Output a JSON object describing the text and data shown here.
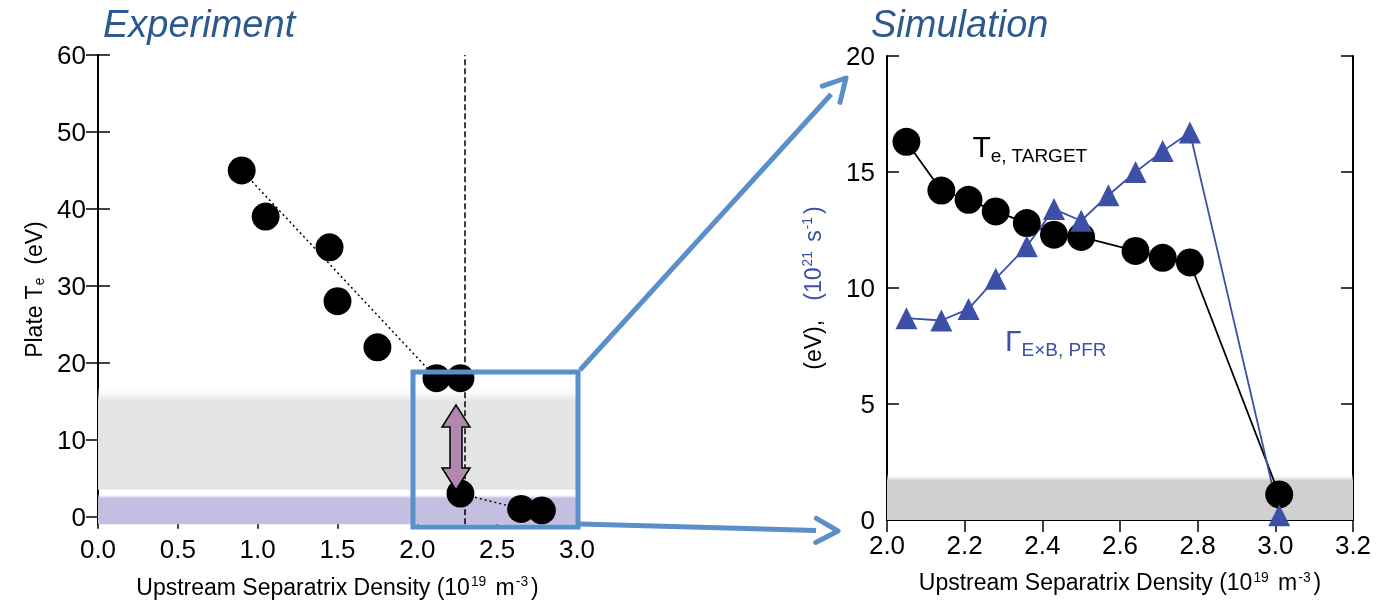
{
  "chart_data": [
    {
      "type": "scatter",
      "title": "Experiment",
      "xlabel": "Upstream Separatrix Density (10$^{19}$ m$^{-3}$)",
      "ylabel": "Plate T$_{e}$  (eV)",
      "xlim": [
        0,
        3
      ],
      "xticks": [
        {
          "value": 0,
          "label": "0.0"
        },
        {
          "value": 0.5,
          "label": "0.5"
        },
        {
          "value": 1,
          "label": "1.0"
        },
        {
          "value": 1.5,
          "label": "1.5"
        },
        {
          "value": 2,
          "label": "2.0"
        },
        {
          "value": 2.5,
          "label": "2.5"
        },
        {
          "value": 3,
          "label": "3.0"
        }
      ],
      "ylim": [
        -1,
        60
      ],
      "yticks": [
        0,
        10,
        20,
        30,
        40,
        50,
        60
      ],
      "grid": false,
      "legend": false,
      "series": [
        {
          "color": "#000000",
          "marker": "circle",
          "x": [
            0.9,
            1.05,
            1.45,
            1.5,
            1.75,
            2.12,
            2.27,
            2.27,
            2.65,
            2.78
          ],
          "values": [
            45,
            39,
            35,
            28,
            22,
            18,
            18,
            3,
            1,
            0.8
          ]
        },
        {
          "type": "line",
          "color": "#000000",
          "marker": "none",
          "line_style": "dotted",
          "x": [
            0.9,
            2.12
          ],
          "values": [
            45,
            18
          ]
        },
        {
          "type": "line",
          "color": "#000000",
          "marker": "none",
          "line_style": "dotted",
          "x": [
            2.27,
            2.65
          ],
          "values": [
            3,
            1
          ]
        }
      ],
      "ref_lines": [
        {
          "axis": "x",
          "value": 2.3,
          "color": "#000000",
          "line_style": "dashed"
        }
      ],
      "bands": [
        {
          "axis": "y",
          "from": 3.5,
          "to": 17,
          "color": "#e4e4e4"
        },
        {
          "axis": "y",
          "from": -1,
          "to": 3,
          "color": "#c3bfe0"
        }
      ]
    },
    {
      "type": "line",
      "title": "Simulation",
      "xlabel": "Upstream Separatrix Density (10$^{19}$ m$^{-3}$)",
      "ylabel": "(eV),   (10$^{21}$ s$^{-1}$)",
      "xlim": [
        2,
        3.2
      ],
      "xticks": [
        {
          "value": 2,
          "label": "2.0"
        },
        {
          "value": 2.2,
          "label": "2.2"
        },
        {
          "value": 2.4,
          "label": "2.4"
        },
        {
          "value": 2.6,
          "label": "2.6"
        },
        {
          "value": 2.8,
          "label": "2.8"
        },
        {
          "value": 3,
          "label": "3.0"
        },
        {
          "value": 3.2,
          "label": "3.2"
        }
      ],
      "ylim": [
        0,
        20
      ],
      "yticks": [
        0,
        5,
        10,
        15,
        20
      ],
      "grid": false,
      "legend": false,
      "series": [
        {
          "name": "T$_{e, TARGET}$",
          "color": "#000000",
          "marker": "circle",
          "x": [
            2.05,
            2.14,
            2.21,
            2.28,
            2.36,
            2.43,
            2.5,
            2.64,
            2.71,
            2.78,
            3.01
          ],
          "values": [
            16.3,
            14.2,
            13.8,
            13.3,
            12.8,
            12.3,
            12.2,
            11.6,
            11.3,
            11.1,
            1.1
          ]
        },
        {
          "name": "Γ$_{E×B, PFR}$",
          "color": "#3b50a6",
          "marker": "triangle",
          "x": [
            2.05,
            2.14,
            2.21,
            2.28,
            2.36,
            2.43,
            2.5,
            2.57,
            2.64,
            2.71,
            2.78,
            3.01
          ],
          "values": [
            8.7,
            8.6,
            9.1,
            10.4,
            11.8,
            13.4,
            12.9,
            14.0,
            15.0,
            15.9,
            16.7,
            0.2
          ]
        }
      ],
      "bands": [
        {
          "axis": "y",
          "from": 0,
          "to": 2,
          "color": "#d0d0d0"
        }
      ]
    }
  ]
}
